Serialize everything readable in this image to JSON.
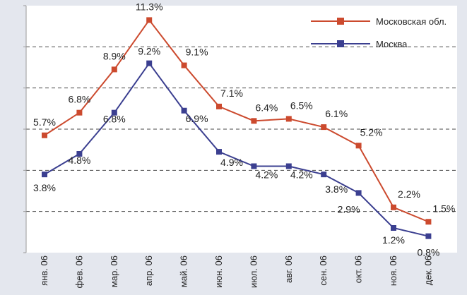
{
  "chart_data": {
    "type": "line",
    "title": "",
    "xlabel": "",
    "ylabel": "",
    "ylim": [
      0,
      12
    ],
    "grid": true,
    "legend_position": "top-right",
    "categories": [
      "янв. 06",
      "фев. 06",
      "мар. 06",
      "апр. 06",
      "май. 06",
      "июн. 06",
      "июл. 06",
      "авг. 06",
      "сен. 06",
      "окт. 06",
      "ноя. 06",
      "дек. 06"
    ],
    "series": [
      {
        "name": "Московская обл.",
        "color": "#cc4a2e",
        "values": [
          5.7,
          6.8,
          8.9,
          11.3,
          9.1,
          7.1,
          6.4,
          6.5,
          6.1,
          5.2,
          2.2,
          1.5
        ],
        "labels": [
          "5.7%",
          "6.8%",
          "8.9%",
          "11.3%",
          "9.1%",
          "7.1%",
          "6.4%",
          "6.5%",
          "6.1%",
          "5.2%",
          "2.2%",
          "1.5%"
        ]
      },
      {
        "name": "Москва",
        "color": "#3b3f90",
        "values": [
          3.8,
          4.8,
          6.8,
          9.2,
          6.9,
          4.9,
          4.2,
          4.2,
          3.8,
          2.9,
          1.2,
          0.8
        ],
        "labels": [
          "3.8%",
          "4.8%",
          "6.8%",
          "9.2%",
          "6.9%",
          "4.9%",
          "4.2%",
          "4.2%",
          "3.8%",
          "2.9%",
          "1.2%",
          "0.8%"
        ]
      }
    ]
  }
}
